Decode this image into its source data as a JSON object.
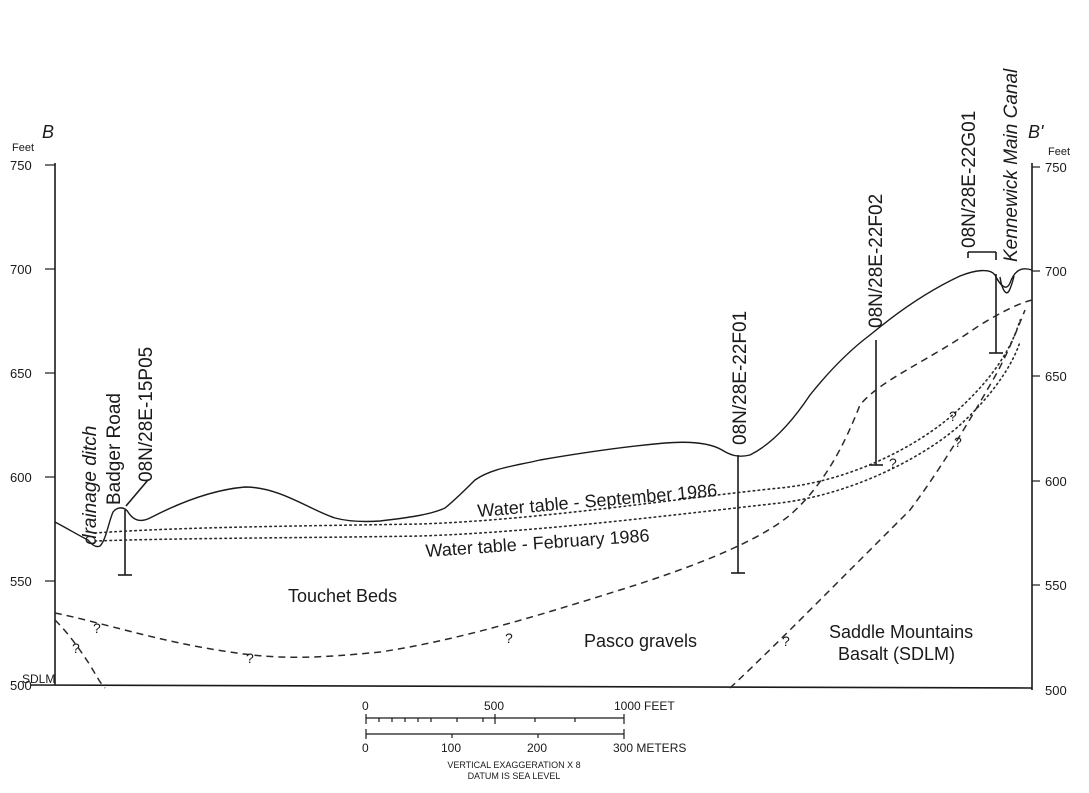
{
  "section": {
    "left_label": "B",
    "right_label": "B'",
    "left_unit": "Feet",
    "right_unit": "Feet",
    "left_ticks": [
      "750",
      "700",
      "650",
      "600",
      "550",
      "500"
    ],
    "right_ticks": [
      "750",
      "700",
      "650",
      "600",
      "550",
      "500"
    ]
  },
  "features": {
    "ditch": "drainage ditch",
    "road": "Badger Road",
    "canal": "Kennewick Main Canal"
  },
  "wells": [
    "08N/28E-15P05",
    "08N/28E-22F01",
    "08N/28E-22F02",
    "08N/28E-22G01"
  ],
  "water_tables": {
    "september": "Water table - September 1986",
    "february": "Water table - February 1986"
  },
  "units": {
    "touchet": "Touchet Beds",
    "pasco": "Pasco gravels",
    "saddle_line1": "Saddle Mountains",
    "saddle_line2": "Basalt (SDLM)",
    "sdlm": "SDLM"
  },
  "query_mark": "?",
  "scale": {
    "feet_ticks": [
      "0",
      "500",
      "1000 FEET"
    ],
    "meter_ticks": [
      "0",
      "100",
      "200",
      "300 METERS"
    ],
    "note_line1": "VERTICAL EXAGGERATION X 8",
    "note_line2": "DATUM IS SEA LEVEL"
  }
}
